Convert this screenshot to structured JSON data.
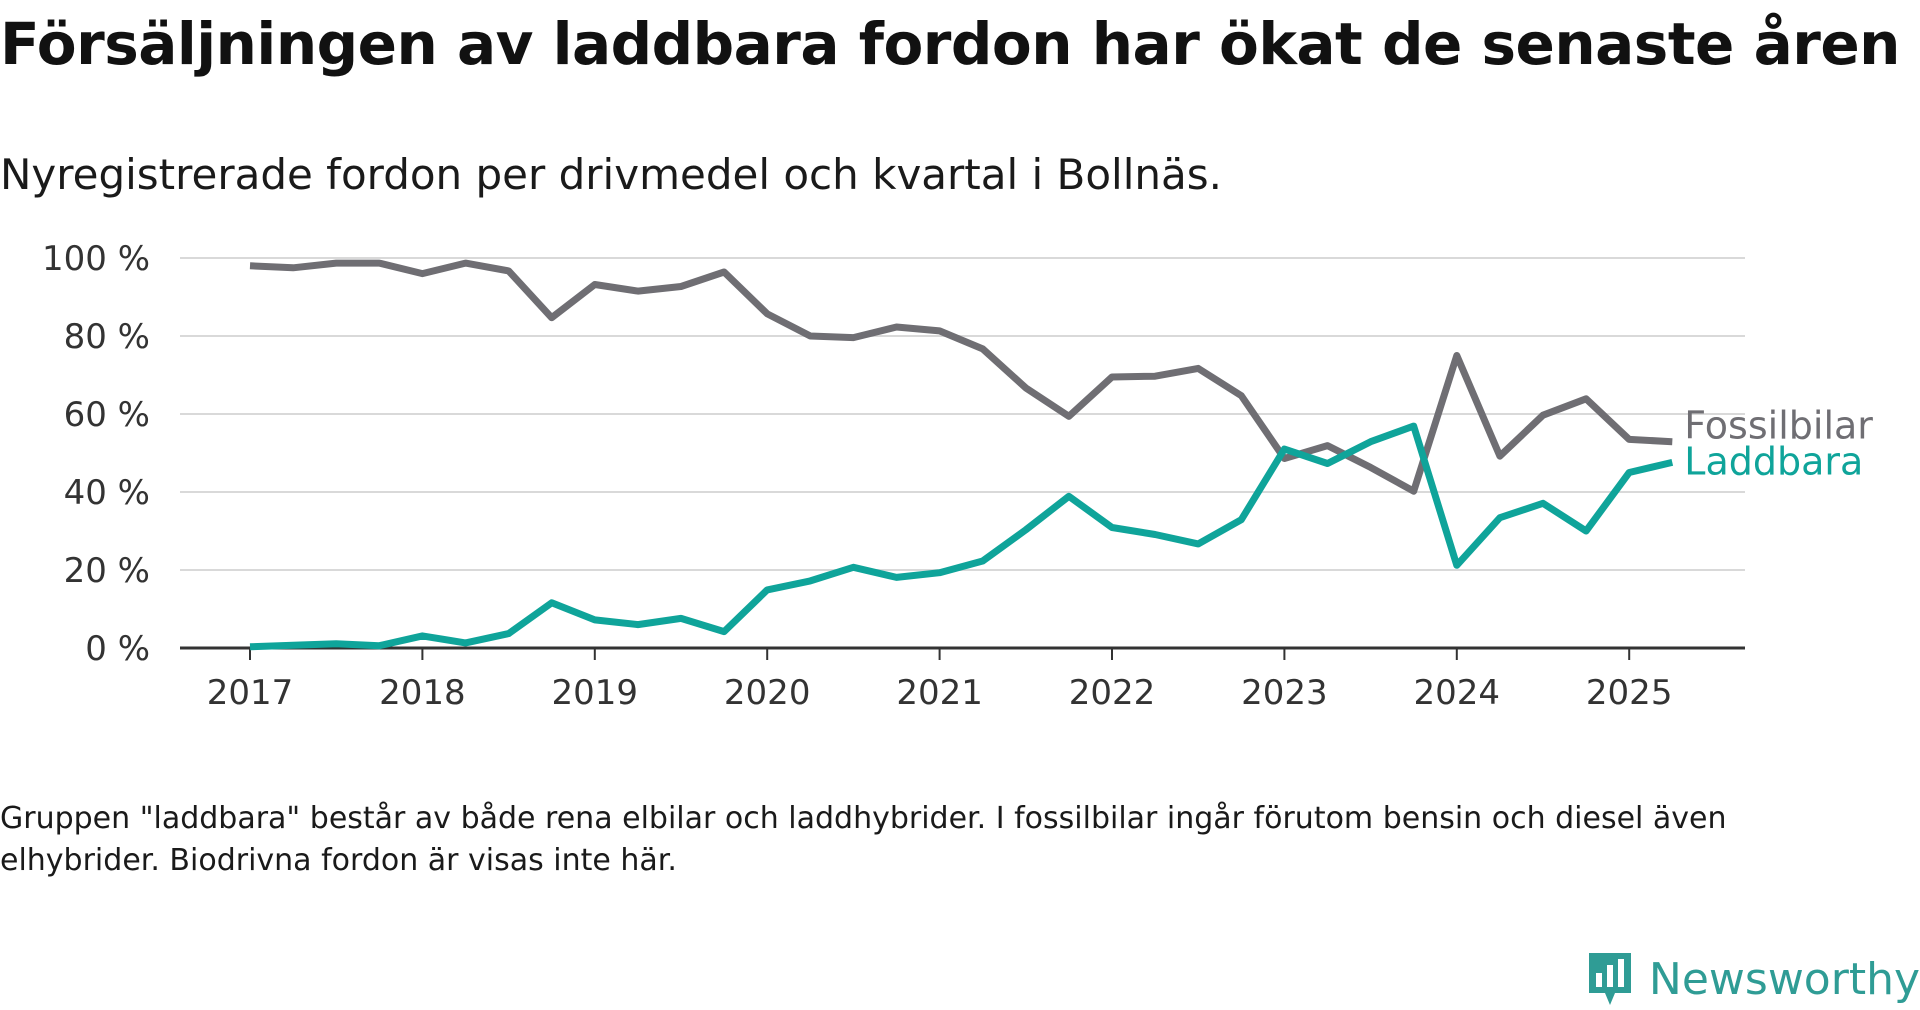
{
  "title": "Försäljningen av laddbara fordon har ökat de senaste åren",
  "subtitle": "Nyregistrerade fordon per drivmedel och kvartal i Bollnäs.",
  "footnote": "Gruppen \"laddbara\" består av både rena elbilar och laddhybrider. I fossilbilar ingår förutom bensin och diesel även elhybrider. Biodrivna fordon är visas inte här.",
  "brand": {
    "name": "Newsworthy",
    "icon": "newsworthy-logo-icon",
    "color": "#2f9c95"
  },
  "chart_data": {
    "type": "line",
    "title": "",
    "xlabel": "",
    "ylabel": "",
    "x": [
      "2017 Q1",
      "2017 Q2",
      "2017 Q3",
      "2017 Q4",
      "2018 Q1",
      "2018 Q2",
      "2018 Q3",
      "2018 Q4",
      "2019 Q1",
      "2019 Q2",
      "2019 Q3",
      "2019 Q4",
      "2020 Q1",
      "2020 Q2",
      "2020 Q3",
      "2020 Q4",
      "2021 Q1",
      "2021 Q2",
      "2021 Q3",
      "2021 Q4",
      "2022 Q1",
      "2022 Q2",
      "2022 Q3",
      "2022 Q4",
      "2023 Q1",
      "2023 Q2",
      "2023 Q3",
      "2023 Q4",
      "2024 Q1",
      "2024 Q2",
      "2024 Q3",
      "2024 Q4",
      "2025 Q1",
      "2025 Q2"
    ],
    "xticks": [
      "2017",
      "2018",
      "2019",
      "2020",
      "2021",
      "2022",
      "2023",
      "2024",
      "2025"
    ],
    "ylim": [
      0,
      100
    ],
    "yticks": [
      "0 %",
      "20 %",
      "40 %",
      "60 %",
      "80 %",
      "100 %"
    ],
    "grid": true,
    "legend": "inline labels at line ends",
    "series": [
      {
        "name": "Fossilbilar",
        "color": "#6f6e73",
        "values": [
          98,
          97.5,
          98.7,
          98.7,
          96,
          98.7,
          96.7,
          84.7,
          93.2,
          91.5,
          92.7,
          96.4,
          85.7,
          80,
          79.6,
          82.3,
          81.3,
          76.7,
          66.7,
          59.4,
          69.5,
          69.7,
          71.7,
          64.7,
          48.6,
          51.9,
          46.3,
          40.2,
          75,
          49.2,
          59.7,
          63.9,
          53.5,
          52.9
        ]
      },
      {
        "name": "Laddbara",
        "color": "#0fa49a",
        "values": [
          0.3,
          0.7,
          1.1,
          0.6,
          3.1,
          1.3,
          3.7,
          11.6,
          7.2,
          6,
          7.6,
          4.2,
          14.9,
          17.2,
          20.7,
          18.1,
          19.3,
          22.3,
          30.3,
          38.9,
          30.9,
          29.1,
          26.7,
          32.9,
          51,
          47.3,
          52.9,
          56.9,
          21.2,
          33.4,
          37.1,
          30,
          45,
          47.6
        ]
      }
    ]
  }
}
